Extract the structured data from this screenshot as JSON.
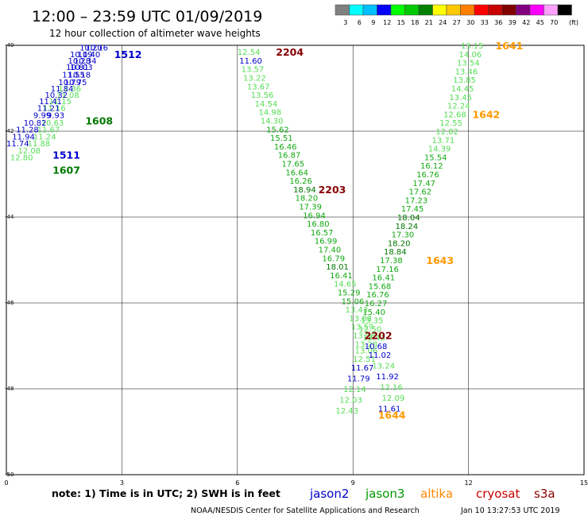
{
  "header": {
    "title": "12:00 – 23:59 UTC 01/09/2019",
    "subtitle": "12 hour collection of altimeter wave heights"
  },
  "color_scale": {
    "unit": "(ft)",
    "entries": [
      {
        "label": "3",
        "color": "#808080"
      },
      {
        "label": "6",
        "color": "#00ffff"
      },
      {
        "label": "9",
        "color": "#00bfff"
      },
      {
        "label": "12",
        "color": "#0000ff"
      },
      {
        "label": "15",
        "color": "#00ff00"
      },
      {
        "label": "18",
        "color": "#00c800"
      },
      {
        "label": "21",
        "color": "#008000"
      },
      {
        "label": "24",
        "color": "#ffff00"
      },
      {
        "label": "27",
        "color": "#ffc800"
      },
      {
        "label": "30",
        "color": "#ff8000"
      },
      {
        "label": "33",
        "color": "#ff0000"
      },
      {
        "label": "36",
        "color": "#c80000"
      },
      {
        "label": "39",
        "color": "#800000"
      },
      {
        "label": "42",
        "color": "#800080"
      },
      {
        "label": "45",
        "color": "#ff00ff"
      },
      {
        "label": "70",
        "color": "#ffa0ff"
      },
      {
        "label": "",
        "color": "#000000"
      }
    ]
  },
  "footer": {
    "note": "note: 1) Time is in UTC; 2) SWH is in feet",
    "credit": "NOAA/NESDIS Center for Satellite Applications and Research",
    "timestamp": "Jan 10 13:27:53 UTC 2019"
  },
  "legend": [
    {
      "name": "jason2",
      "color": "#0000cc"
    },
    {
      "name": "jason3",
      "color": "#009900"
    },
    {
      "name": "altika",
      "color": "#ff8800"
    },
    {
      "name": "cryosat",
      "color": "#cc0000"
    },
    {
      "name": "s3a",
      "color": "#880000"
    }
  ],
  "chart_data": {
    "type": "scatter",
    "xlim": [
      0,
      15
    ],
    "ylim": [
      -50,
      -40
    ],
    "x_ticks": [
      "0",
      "3",
      "6",
      "9",
      "12",
      "15"
    ],
    "y_ticks": [
      "-40",
      "-42",
      "-44",
      "-46",
      "-48",
      "-50"
    ],
    "grid": true,
    "colors": {
      "lg": "#55dd55",
      "mg": "#11aa11",
      "dg": "#007700",
      "bl": "#0000cc",
      "or": "#ff9900",
      "mr": "#880000"
    },
    "time_labels": [
      {
        "text": "1512",
        "x": 2.8,
        "y": -40.2,
        "c": "bl"
      },
      {
        "text": "1608",
        "x": 2.05,
        "y": -41.75,
        "c": "dg"
      },
      {
        "text": "1511",
        "x": 1.2,
        "y": -42.55,
        "c": "bl"
      },
      {
        "text": "1607",
        "x": 1.2,
        "y": -42.9,
        "c": "dg"
      },
      {
        "text": "2204",
        "x": 7.0,
        "y": -40.15,
        "c": "mr"
      },
      {
        "text": "2203",
        "x": 8.1,
        "y": -43.35,
        "c": "mr"
      },
      {
        "text": "2202",
        "x": 9.3,
        "y": -46.75,
        "c": "mr"
      },
      {
        "text": "1641",
        "x": 12.7,
        "y": -40.0,
        "c": "or"
      },
      {
        "text": "1642",
        "x": 12.1,
        "y": -41.6,
        "c": "or"
      },
      {
        "text": "1643",
        "x": 10.9,
        "y": -45.0,
        "c": "or"
      },
      {
        "text": "1644",
        "x": 9.65,
        "y": -48.6,
        "c": "or"
      }
    ],
    "points": [
      {
        "x": 2.05,
        "y": -40.05,
        "v": "10.16",
        "c": "bl"
      },
      {
        "x": 1.9,
        "y": -40.05,
        "v": "10.20",
        "c": "bl"
      },
      {
        "x": 1.85,
        "y": -40.2,
        "v": "10.40",
        "c": "bl"
      },
      {
        "x": 1.65,
        "y": -40.2,
        "v": "10.19",
        "c": "bl"
      },
      {
        "x": 1.75,
        "y": -40.35,
        "v": "10.34",
        "c": "bl"
      },
      {
        "x": 1.6,
        "y": -40.35,
        "v": "10.28",
        "c": "bl"
      },
      {
        "x": 1.65,
        "y": -40.5,
        "v": "10.03",
        "c": "bl"
      },
      {
        "x": 1.55,
        "y": -40.5,
        "v": "10.81",
        "c": "bl"
      },
      {
        "x": 1.6,
        "y": -40.68,
        "v": "10.18",
        "c": "bl"
      },
      {
        "x": 1.45,
        "y": -40.68,
        "v": "11.55",
        "c": "bl"
      },
      {
        "x": 1.5,
        "y": -40.85,
        "v": "10.75",
        "c": "bl"
      },
      {
        "x": 1.35,
        "y": -40.85,
        "v": "10.79",
        "c": "bl"
      },
      {
        "x": 1.35,
        "y": -41.0,
        "v": "11.36",
        "c": "lg"
      },
      {
        "x": 1.15,
        "y": -41.0,
        "v": "11.84",
        "c": "bl"
      },
      {
        "x": 1.3,
        "y": -41.15,
        "v": "11.08",
        "c": "lg"
      },
      {
        "x": 1.0,
        "y": -41.15,
        "v": "10.32",
        "c": "bl"
      },
      {
        "x": 1.1,
        "y": -41.3,
        "v": "11.15",
        "c": "lg"
      },
      {
        "x": 0.85,
        "y": -41.3,
        "v": "11.41",
        "c": "bl"
      },
      {
        "x": 0.95,
        "y": -41.45,
        "v": "11.16",
        "c": "lg"
      },
      {
        "x": 0.8,
        "y": -41.45,
        "v": "11.21",
        "c": "bl"
      },
      {
        "x": 1.05,
        "y": -41.62,
        "v": "9.93",
        "c": "bl"
      },
      {
        "x": 0.7,
        "y": -41.62,
        "v": "9.99",
        "c": "bl"
      },
      {
        "x": 0.9,
        "y": -41.8,
        "v": "10.63",
        "c": "lg"
      },
      {
        "x": 0.45,
        "y": -41.8,
        "v": "10.82",
        "c": "bl"
      },
      {
        "x": 0.8,
        "y": -41.95,
        "v": "11.67",
        "c": "lg"
      },
      {
        "x": 0.25,
        "y": -41.95,
        "v": "11.28",
        "c": "bl"
      },
      {
        "x": 0.7,
        "y": -42.12,
        "v": "11.24",
        "c": "lg"
      },
      {
        "x": 0.15,
        "y": -42.12,
        "v": "11.94",
        "c": "bl"
      },
      {
        "x": 0.55,
        "y": -42.28,
        "v": "11.88",
        "c": "lg"
      },
      {
        "x": 0.0,
        "y": -42.28,
        "v": "11.74",
        "c": "bl"
      },
      {
        "x": 0.3,
        "y": -42.44,
        "v": "12.08",
        "c": "lg"
      },
      {
        "x": 0.1,
        "y": -42.6,
        "v": "12.80",
        "c": "lg"
      },
      {
        "x": 6.0,
        "y": -40.15,
        "v": "12.54",
        "c": "lg"
      },
      {
        "x": 6.05,
        "y": -40.35,
        "v": "11.60",
        "c": "bl"
      },
      {
        "x": 6.1,
        "y": -40.55,
        "v": "13.57",
        "c": "lg"
      },
      {
        "x": 6.15,
        "y": -40.75,
        "v": "13.22",
        "c": "lg"
      },
      {
        "x": 6.25,
        "y": -40.95,
        "v": "13.67",
        "c": "lg"
      },
      {
        "x": 6.35,
        "y": -41.15,
        "v": "13.56",
        "c": "lg"
      },
      {
        "x": 6.45,
        "y": -41.35,
        "v": "14.54",
        "c": "lg"
      },
      {
        "x": 6.55,
        "y": -41.55,
        "v": "14.98",
        "c": "lg"
      },
      {
        "x": 6.6,
        "y": -41.75,
        "v": "14.30",
        "c": "lg"
      },
      {
        "x": 6.75,
        "y": -41.95,
        "v": "15.62",
        "c": "mg"
      },
      {
        "x": 6.85,
        "y": -42.15,
        "v": "15.51",
        "c": "mg"
      },
      {
        "x": 6.95,
        "y": -42.35,
        "v": "16.46",
        "c": "mg"
      },
      {
        "x": 7.05,
        "y": -42.55,
        "v": "16.87",
        "c": "mg"
      },
      {
        "x": 7.15,
        "y": -42.75,
        "v": "17.65",
        "c": "mg"
      },
      {
        "x": 7.25,
        "y": -42.95,
        "v": "16.64",
        "c": "mg"
      },
      {
        "x": 7.35,
        "y": -43.15,
        "v": "16.26",
        "c": "mg"
      },
      {
        "x": 7.45,
        "y": -43.35,
        "v": "18.94",
        "c": "dg"
      },
      {
        "x": 7.5,
        "y": -43.55,
        "v": "18.20",
        "c": "mg"
      },
      {
        "x": 7.6,
        "y": -43.75,
        "v": "17.39",
        "c": "mg"
      },
      {
        "x": 7.7,
        "y": -43.95,
        "v": "16.94",
        "c": "mg"
      },
      {
        "x": 7.8,
        "y": -44.15,
        "v": "16.80",
        "c": "mg"
      },
      {
        "x": 7.9,
        "y": -44.35,
        "v": "16.57",
        "c": "mg"
      },
      {
        "x": 8.0,
        "y": -44.55,
        "v": "16.99",
        "c": "mg"
      },
      {
        "x": 8.1,
        "y": -44.75,
        "v": "17.40",
        "c": "mg"
      },
      {
        "x": 8.2,
        "y": -44.95,
        "v": "16.79",
        "c": "mg"
      },
      {
        "x": 8.3,
        "y": -45.15,
        "v": "18.01",
        "c": "dg"
      },
      {
        "x": 8.4,
        "y": -45.35,
        "v": "16.41",
        "c": "mg"
      },
      {
        "x": 8.5,
        "y": -45.55,
        "v": "14.65",
        "c": "lg"
      },
      {
        "x": 8.6,
        "y": -45.75,
        "v": "15.29",
        "c": "mg"
      },
      {
        "x": 8.7,
        "y": -45.95,
        "v": "15.06",
        "c": "mg"
      },
      {
        "x": 8.8,
        "y": -46.15,
        "v": "13.43",
        "c": "lg"
      },
      {
        "x": 8.9,
        "y": -46.35,
        "v": "13.88",
        "c": "lg"
      },
      {
        "x": 8.95,
        "y": -46.55,
        "v": "13.59",
        "c": "lg"
      },
      {
        "x": 9.0,
        "y": -46.75,
        "v": "13.58",
        "c": "lg"
      },
      {
        "x": 9.05,
        "y": -46.95,
        "v": "13.28",
        "c": "lg"
      },
      {
        "x": 9.05,
        "y": -47.1,
        "v": "13.06",
        "c": "lg"
      },
      {
        "x": 9.0,
        "y": -47.3,
        "v": "12.51",
        "c": "lg"
      },
      {
        "x": 8.95,
        "y": -47.5,
        "v": "11.67",
        "c": "bl"
      },
      {
        "x": 8.85,
        "y": -47.75,
        "v": "11.79",
        "c": "bl"
      },
      {
        "x": 8.75,
        "y": -48.0,
        "v": "12.14",
        "c": "lg"
      },
      {
        "x": 8.65,
        "y": -48.25,
        "v": "12.03",
        "c": "lg"
      },
      {
        "x": 8.55,
        "y": -48.5,
        "v": "12.43",
        "c": "lg"
      },
      {
        "x": 11.8,
        "y": -40.0,
        "v": "13.15",
        "c": "lg"
      },
      {
        "x": 11.75,
        "y": -40.2,
        "v": "14.06",
        "c": "lg"
      },
      {
        "x": 11.7,
        "y": -40.4,
        "v": "13.54",
        "c": "lg"
      },
      {
        "x": 11.65,
        "y": -40.6,
        "v": "13.46",
        "c": "lg"
      },
      {
        "x": 11.6,
        "y": -40.8,
        "v": "13.85",
        "c": "lg"
      },
      {
        "x": 11.55,
        "y": -41.0,
        "v": "14.45",
        "c": "lg"
      },
      {
        "x": 11.5,
        "y": -41.2,
        "v": "13.45",
        "c": "lg"
      },
      {
        "x": 11.45,
        "y": -41.4,
        "v": "12.24",
        "c": "lg"
      },
      {
        "x": 11.35,
        "y": -41.6,
        "v": "12.68",
        "c": "lg"
      },
      {
        "x": 11.25,
        "y": -41.8,
        "v": "12.55",
        "c": "lg"
      },
      {
        "x": 11.15,
        "y": -42.0,
        "v": "12.82",
        "c": "lg"
      },
      {
        "x": 11.05,
        "y": -42.2,
        "v": "13.71",
        "c": "lg"
      },
      {
        "x": 10.95,
        "y": -42.4,
        "v": "14.39",
        "c": "lg"
      },
      {
        "x": 10.85,
        "y": -42.6,
        "v": "15.54",
        "c": "mg"
      },
      {
        "x": 10.75,
        "y": -42.8,
        "v": "16.12",
        "c": "mg"
      },
      {
        "x": 10.65,
        "y": -43.0,
        "v": "16.76",
        "c": "mg"
      },
      {
        "x": 10.55,
        "y": -43.2,
        "v": "17.47",
        "c": "mg"
      },
      {
        "x": 10.45,
        "y": -43.4,
        "v": "17.62",
        "c": "mg"
      },
      {
        "x": 10.35,
        "y": -43.6,
        "v": "17.23",
        "c": "mg"
      },
      {
        "x": 10.25,
        "y": -43.8,
        "v": "17.45",
        "c": "mg"
      },
      {
        "x": 10.15,
        "y": -44.0,
        "v": "18.04",
        "c": "dg"
      },
      {
        "x": 10.1,
        "y": -44.2,
        "v": "18.24",
        "c": "dg"
      },
      {
        "x": 10.0,
        "y": -44.4,
        "v": "17.30",
        "c": "mg"
      },
      {
        "x": 9.9,
        "y": -44.6,
        "v": "18.20",
        "c": "dg"
      },
      {
        "x": 9.8,
        "y": -44.8,
        "v": "18.84",
        "c": "dg"
      },
      {
        "x": 9.7,
        "y": -45.0,
        "v": "17.38",
        "c": "mg"
      },
      {
        "x": 9.6,
        "y": -45.2,
        "v": "17.16",
        "c": "mg"
      },
      {
        "x": 9.5,
        "y": -45.4,
        "v": "16.41",
        "c": "mg"
      },
      {
        "x": 9.4,
        "y": -45.6,
        "v": "15.68",
        "c": "mg"
      },
      {
        "x": 9.35,
        "y": -45.8,
        "v": "16.76",
        "c": "mg"
      },
      {
        "x": 9.3,
        "y": -46.0,
        "v": "16.27",
        "c": "mg"
      },
      {
        "x": 9.25,
        "y": -46.2,
        "v": "15.40",
        "c": "mg"
      },
      {
        "x": 9.2,
        "y": -46.4,
        "v": "13.35",
        "c": "lg"
      },
      {
        "x": 9.15,
        "y": -46.6,
        "v": "12.50",
        "c": "lg"
      },
      {
        "x": 9.25,
        "y": -46.8,
        "v": "13.43",
        "c": "lg"
      },
      {
        "x": 9.3,
        "y": -47.0,
        "v": "10.68",
        "c": "bl"
      },
      {
        "x": 9.4,
        "y": -47.2,
        "v": "11.02",
        "c": "bl"
      },
      {
        "x": 9.5,
        "y": -47.45,
        "v": "13.24",
        "c": "lg"
      },
      {
        "x": 9.6,
        "y": -47.7,
        "v": "11.92",
        "c": "bl"
      },
      {
        "x": 9.7,
        "y": -47.95,
        "v": "12.16",
        "c": "lg"
      },
      {
        "x": 9.75,
        "y": -48.2,
        "v": "12.09",
        "c": "lg"
      },
      {
        "x": 9.65,
        "y": -48.45,
        "v": "11.61",
        "c": "bl"
      }
    ]
  }
}
